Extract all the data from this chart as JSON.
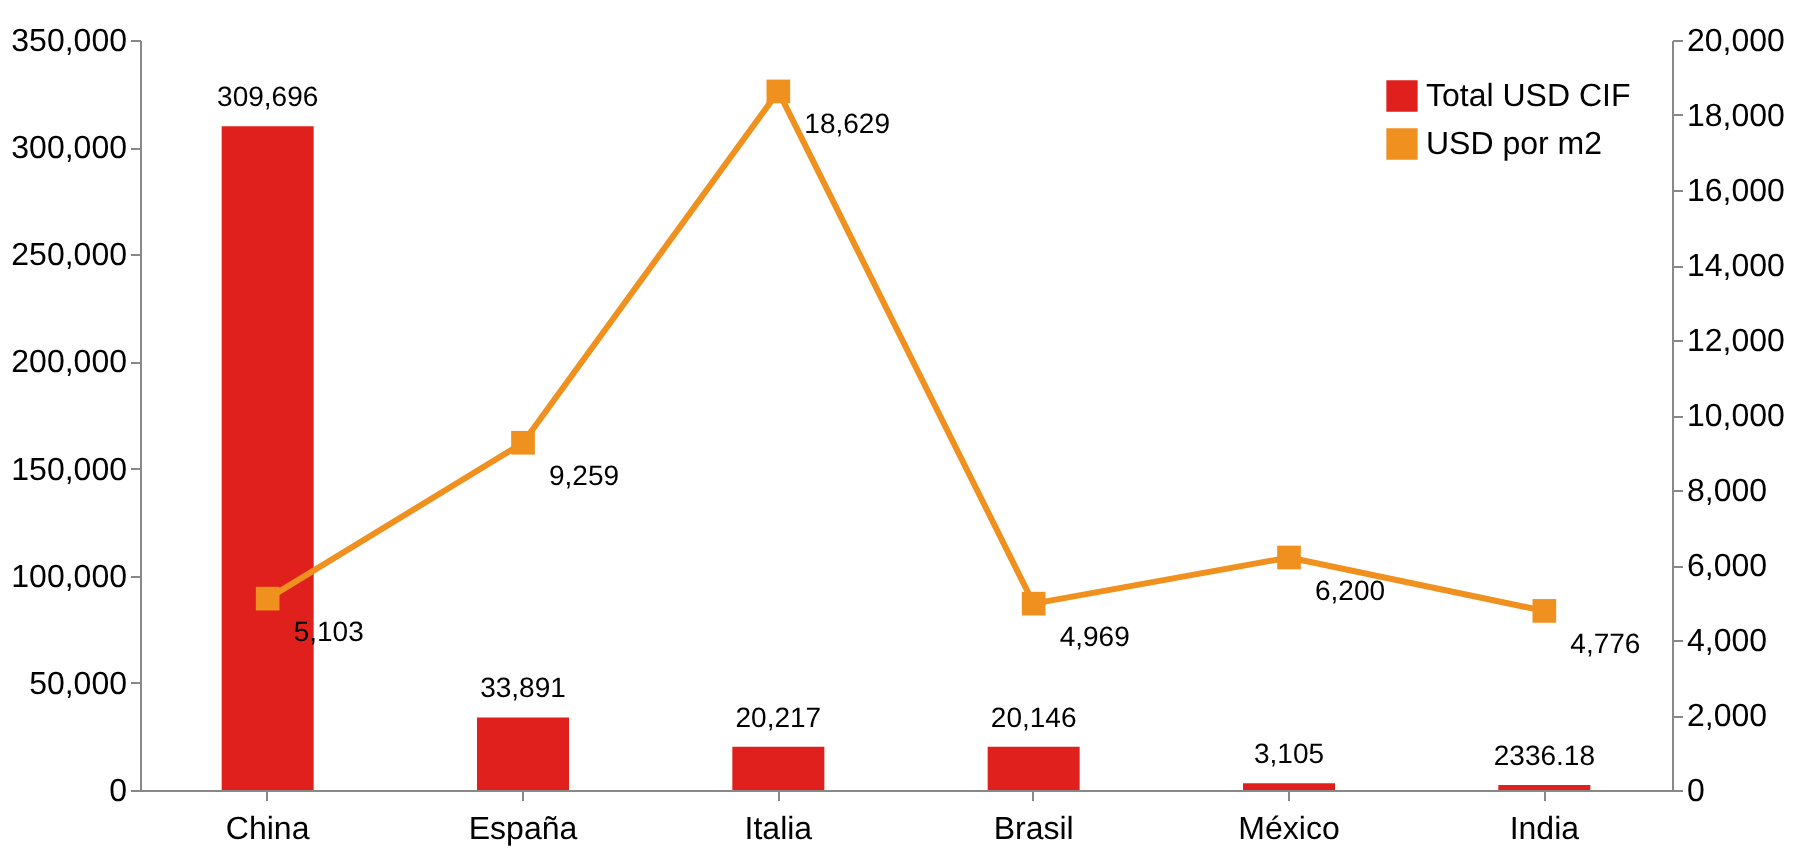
{
  "chart_data": {
    "type": "bar",
    "categories": [
      "China",
      "España",
      "Italia",
      "Brasil",
      "México",
      "India"
    ],
    "series": [
      {
        "name": "Total USD CIF",
        "color": "#e0201c",
        "values": [
          309696,
          33891,
          20217,
          20146,
          3105,
          2336.18
        ],
        "value_labels": [
          "309,696",
          "33,891",
          "20,217",
          "20,146",
          "3,105",
          "2336.18"
        ]
      },
      {
        "name": "USD por m2",
        "type": "line",
        "axis": "y2",
        "color": "#f0901e",
        "marker": "square",
        "values": [
          5103,
          9259,
          18629,
          4969,
          6200,
          4776
        ],
        "value_labels": [
          "5,103",
          "9,259",
          "18,629",
          "4,969",
          "6,200",
          "4,776"
        ]
      }
    ],
    "ylim": [
      0,
      350000
    ],
    "yticks": [
      0,
      {
        "value": 50000,
        "label": "50,000"
      },
      {
        "value": 100000,
        "label": "100,000"
      },
      {
        "value": 150000,
        "label": "150,000"
      },
      {
        "value": 200000,
        "label": "200,000"
      },
      {
        "value": 250000,
        "label": "250,000"
      },
      {
        "value": 300000,
        "label": "300,000"
      },
      {
        "value": 350000,
        "label": "350,000"
      }
    ],
    "y2lim": [
      0,
      20000
    ],
    "y2ticks": [
      0,
      {
        "value": 2000,
        "label": "2,000"
      },
      {
        "value": 4000,
        "label": "4,000"
      },
      {
        "value": 6000,
        "label": "6,000"
      },
      {
        "value": 8000,
        "label": "8,000"
      },
      {
        "value": 10000,
        "label": "10,000"
      },
      {
        "value": 12000,
        "label": "12,000"
      },
      {
        "value": 14000,
        "label": "14,000"
      },
      {
        "value": 16000,
        "label": "16,000"
      },
      {
        "value": 18000,
        "label": "18,000"
      },
      {
        "value": 20000,
        "label": "20,000"
      }
    ],
    "legend": "top right",
    "grid": false
  }
}
